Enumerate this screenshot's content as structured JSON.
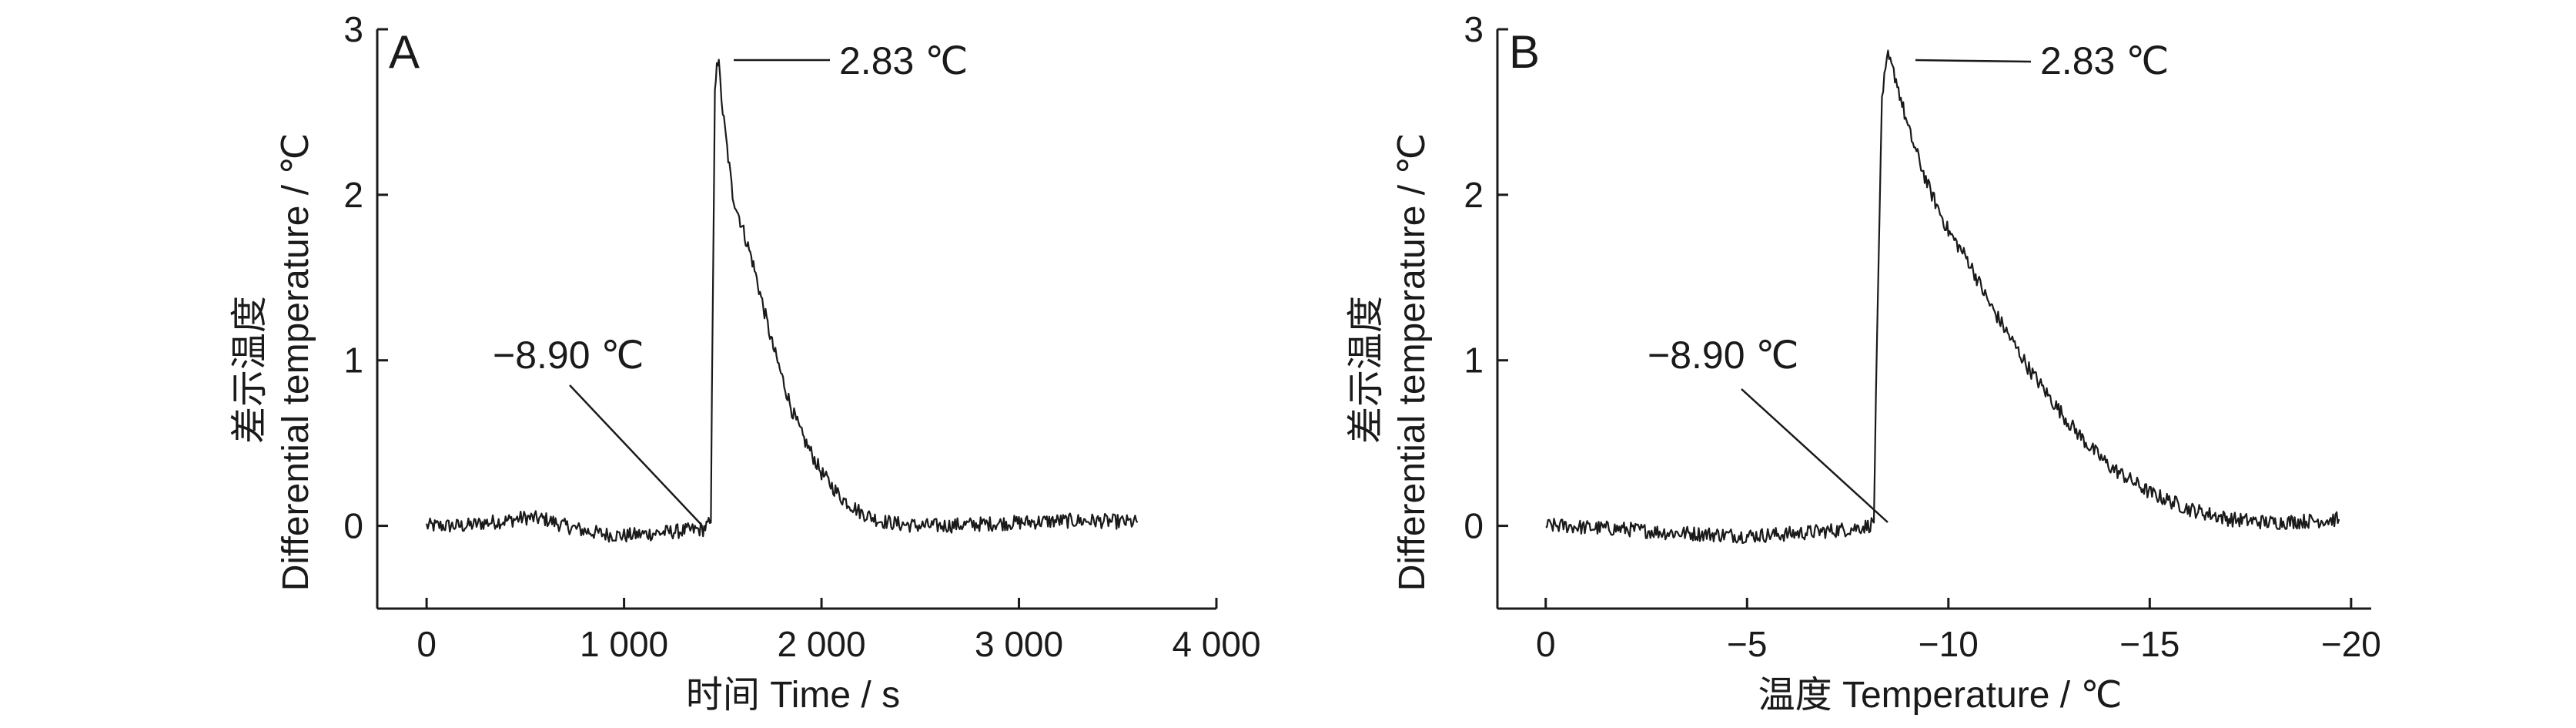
{
  "chart_data": [
    {
      "type": "line",
      "panel_label": "A",
      "xlabel": "时间 Time / s",
      "ylabel_cn": "差示温度",
      "ylabel_en": "Differential temperature / ℃",
      "xlim": [
        -250,
        4000
      ],
      "ylim": [
        -0.5,
        3
      ],
      "x_ticks": [
        0,
        1000,
        2000,
        3000,
        4000
      ],
      "x_tick_labels": [
        "0",
        "1 000",
        "2 000",
        "3 000",
        "4 000"
      ],
      "y_ticks": [
        0,
        1,
        2,
        3
      ],
      "y_tick_labels": [
        "0",
        "1",
        "2",
        "3"
      ],
      "annotations": [
        {
          "text": "2.83 ℃",
          "x": 1470,
          "y": 2.83
        },
        {
          "text": "−8.90 ℃",
          "x": 1440,
          "y": 0.02
        }
      ],
      "series": [
        {
          "x": [
            0,
            100,
            200,
            300,
            400,
            500,
            600,
            700,
            800,
            900,
            1000,
            1100,
            1200,
            1300,
            1400,
            1440,
            1445,
            1460,
            1470,
            1480,
            1500,
            1550,
            1600,
            1650,
            1700,
            1750,
            1800,
            1850,
            1900,
            2000,
            2100,
            2200,
            2300,
            2400,
            2500,
            2600,
            2800,
            3000,
            3200,
            3400,
            3600
          ],
          "y": [
            0.0,
            0.0,
            0.0,
            0.02,
            0.03,
            0.05,
            0.04,
            0.0,
            -0.03,
            -0.05,
            -0.06,
            -0.05,
            -0.04,
            -0.03,
            -0.02,
            0.02,
            0.8,
            2.6,
            2.83,
            2.78,
            2.5,
            2.0,
            1.8,
            1.6,
            1.35,
            1.1,
            0.9,
            0.7,
            0.55,
            0.32,
            0.17,
            0.08,
            0.03,
            0.01,
            0.0,
            0.0,
            0.01,
            0.02,
            0.03,
            0.03,
            0.02
          ]
        }
      ]
    },
    {
      "type": "line",
      "panel_label": "B",
      "xlabel": "温度 Temperature / ℃",
      "ylabel_cn": "差示温度",
      "ylabel_en": "Differential temperature / ℃",
      "xlim": [
        1.2,
        -20.5
      ],
      "ylim": [
        -0.5,
        3
      ],
      "x_ticks": [
        0,
        -5,
        -10,
        -15,
        -20
      ],
      "x_tick_labels": [
        "0",
        "−5",
        "−10",
        "−15",
        "−20"
      ],
      "y_ticks": [
        0,
        1,
        2,
        3
      ],
      "y_tick_labels": [
        "0",
        "1",
        "2",
        "3"
      ],
      "annotations": [
        {
          "text": "2.83 ℃",
          "x": -8.5,
          "y": 2.83
        },
        {
          "text": "−8.90 ℃",
          "x": -8.1,
          "y": 0.02
        }
      ],
      "series": [
        {
          "x": [
            0,
            -0.5,
            -1,
            -2,
            -3,
            -4,
            -5,
            -6,
            -7,
            -7.5,
            -8,
            -8.15,
            -8.2,
            -8.35,
            -8.5,
            -8.7,
            -9.0,
            -9.5,
            -10,
            -10.5,
            -11,
            -11.5,
            -12,
            -12.5,
            -13,
            -13.5,
            -14,
            -15,
            -16,
            -17,
            -18,
            -19,
            -19.7
          ],
          "y": [
            0.0,
            0.0,
            -0.01,
            -0.02,
            -0.04,
            -0.05,
            -0.06,
            -0.05,
            -0.03,
            -0.02,
            0.0,
            0.02,
            0.8,
            2.6,
            2.83,
            2.7,
            2.4,
            2.05,
            1.78,
            1.6,
            1.35,
            1.15,
            0.95,
            0.78,
            0.62,
            0.48,
            0.36,
            0.2,
            0.1,
            0.04,
            0.02,
            0.03,
            0.04
          ]
        }
      ]
    }
  ]
}
